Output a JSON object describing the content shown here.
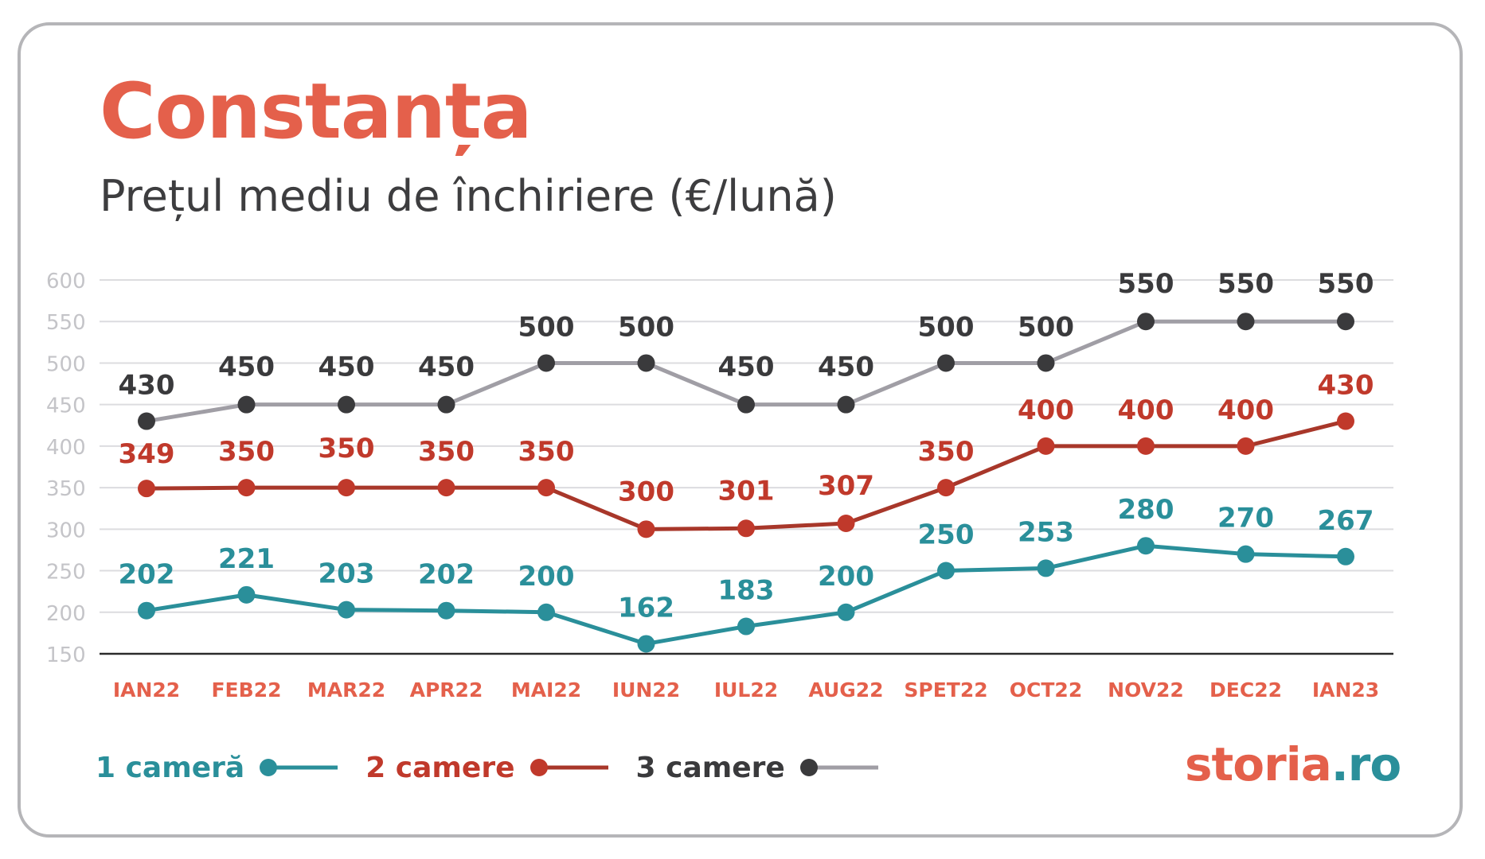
{
  "title": "Constanța",
  "subtitle": "Prețul mediu de închiriere (€/lună)",
  "colors": {
    "title": "#e4604b",
    "subtitle": "#3d3d3f",
    "axis_tick": "#c4c4c8",
    "grid": "#dcdcdf",
    "x_label": "#e4604b",
    "series_1": "#2a8f9a",
    "series_2": "#c0392b",
    "series_3_line": "#a09ea5",
    "series_3_marker": "#3a3a3c",
    "logo_main": "#e4604b",
    "logo_tld": "#2a8f9a"
  },
  "legend": [
    {
      "label": "1 cameră",
      "color": "#2a8f9a",
      "marker": "#2a8f9a"
    },
    {
      "label": "2 camere",
      "color": "#c0392b",
      "marker": "#c0392b"
    },
    {
      "label": "3 camere",
      "color": "#3a3a3c",
      "marker": "#3a3a3c",
      "line": "#a09ea5"
    }
  ],
  "logo": {
    "main": "storia",
    "tld": ".ro"
  },
  "chart_data": {
    "type": "line",
    "title": "Prețul mediu de închiriere (€/lună)",
    "xlabel": "",
    "ylabel": "",
    "categories": [
      "IAN22",
      "FEB22",
      "MAR22",
      "APR22",
      "MAI22",
      "IUN22",
      "IUL22",
      "AUG22",
      "SPET22",
      "OCT22",
      "NOV22",
      "DEC22",
      "IAN23"
    ],
    "ylim": [
      150,
      600
    ],
    "yticks": [
      150,
      200,
      250,
      300,
      350,
      400,
      450,
      500,
      550,
      600
    ],
    "grid": true,
    "legend_position": "bottom-left",
    "series": [
      {
        "name": "1 cameră",
        "color": "#2a8f9a",
        "values": [
          202,
          221,
          203,
          202,
          200,
          162,
          183,
          200,
          250,
          253,
          280,
          270,
          267
        ]
      },
      {
        "name": "2 camere",
        "color": "#c0392b",
        "values": [
          349,
          350,
          350,
          350,
          350,
          300,
          301,
          307,
          350,
          400,
          400,
          400,
          430
        ]
      },
      {
        "name": "3 camere",
        "color": "#a09ea5",
        "marker_color": "#3a3a3c",
        "values": [
          430,
          450,
          450,
          450,
          500,
          500,
          450,
          450,
          500,
          500,
          550,
          550,
          550
        ]
      }
    ]
  }
}
